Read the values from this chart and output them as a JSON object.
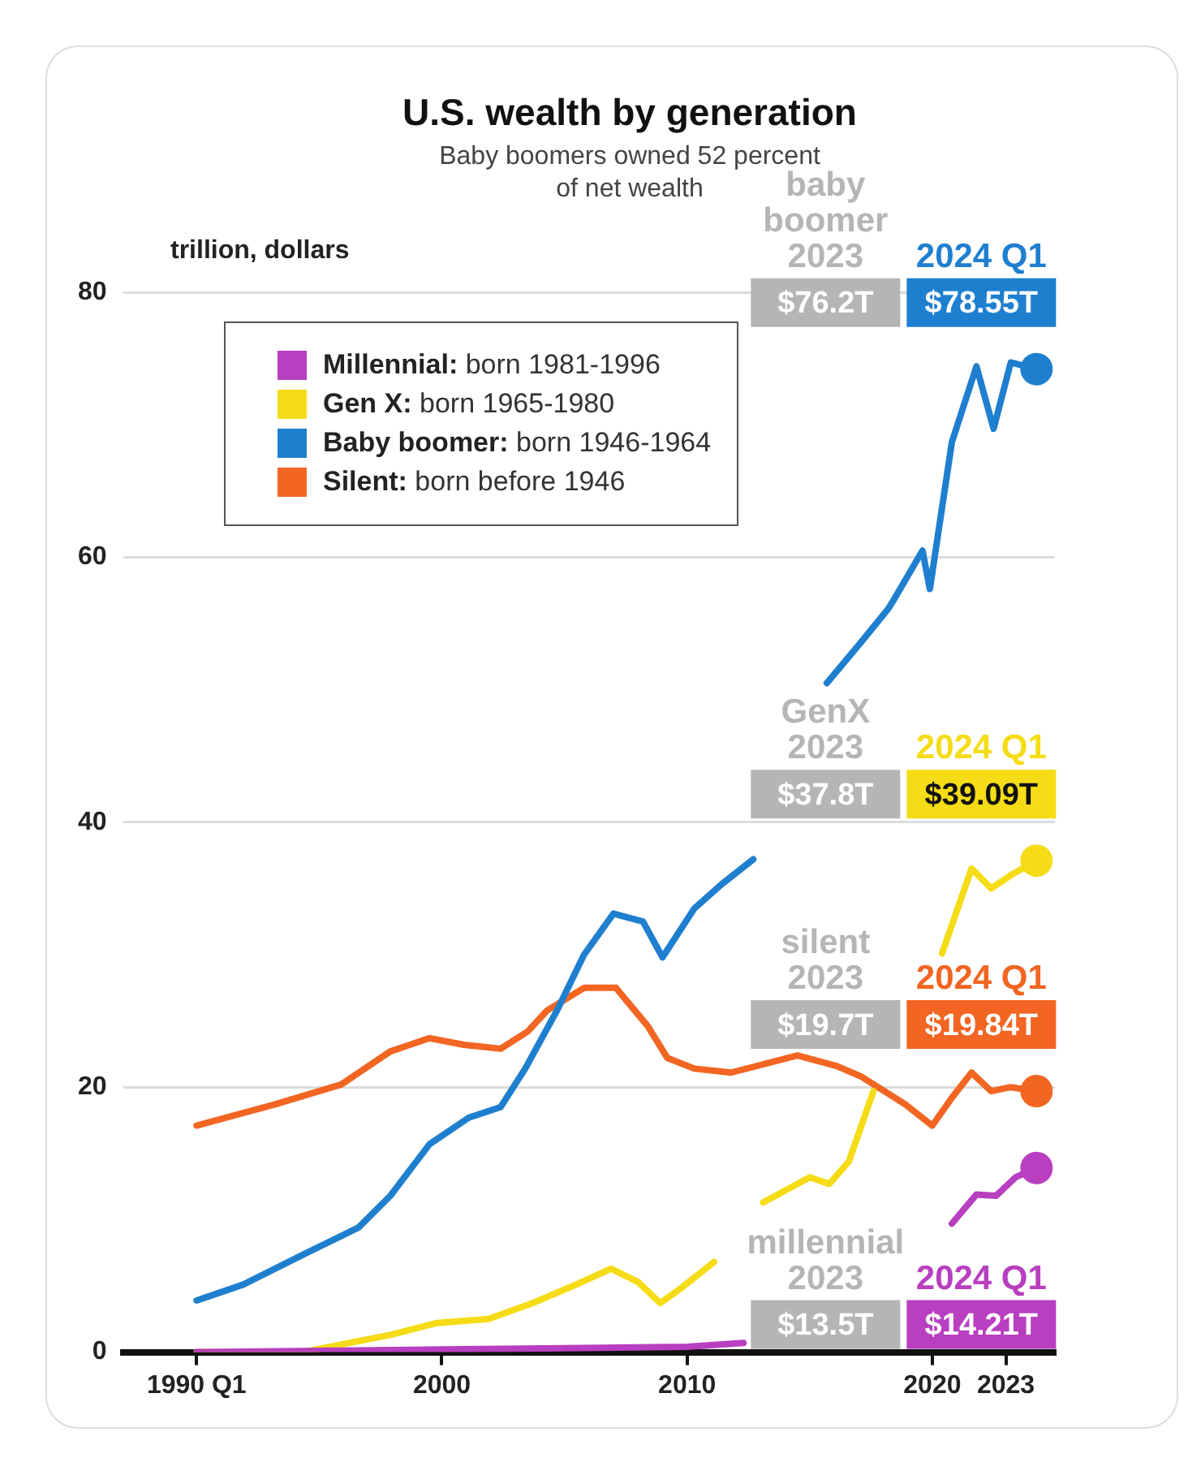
{
  "chart_data": {
    "type": "line",
    "title": "U.S. wealth by generation",
    "subtitle": "Baby boomers owned 52 percent of net wealth",
    "ylabel": "trillion, dollars",
    "xlim": [
      1987,
      2025
    ],
    "xticks": [
      {
        "value": 1990,
        "label": "1990 Q1"
      },
      2000,
      2010,
      2020,
      2023
    ],
    "ylim": [
      0,
      80
    ],
    "yticks": [
      0,
      20,
      40,
      60,
      80
    ],
    "grid": "y",
    "legend": "top left",
    "line_style": "solid",
    "series": [
      {
        "name": "Millennial: born 1981-1996",
        "color": "#b83fc0",
        "x": [
          1990,
          1995,
          2000,
          2005,
          2010,
          2012.3,
          2016,
          2020.8,
          2021.8,
          2022.6,
          2023.4,
          2024.25
        ],
        "values": [
          0,
          0.1,
          0.2,
          0.3,
          0.4,
          0.7,
          null,
          9.7,
          11.9,
          11.8,
          13.2,
          13.9
        ]
      },
      {
        "name": "Gen X: born 1965-1980",
        "color": "#f5dc16",
        "x": [
          1990,
          1994.3,
          1997.9,
          1999.8,
          2001.9,
          2003.7,
          2005.6,
          2006.9,
          2008.0,
          2008.9,
          2009.8,
          2011.1,
          2012.0,
          2013.1,
          2015.0,
          2015.8,
          2016.6,
          2017.6,
          2019.3,
          2020.4,
          2021.6,
          2022.4,
          2023.2,
          2024.25
        ],
        "values": [
          0,
          0,
          1.3,
          2.2,
          2.5,
          3.7,
          5.2,
          6.3,
          5.3,
          3.7,
          4.9,
          6.8,
          null,
          11.3,
          13.2,
          12.7,
          14.4,
          19.7,
          null,
          30.1,
          36.5,
          35.0,
          36.0,
          37.1
        ]
      },
      {
        "name": "Baby boomer: born 1946-1964",
        "color": "#1f7fcf",
        "x": [
          1990,
          1991.9,
          1994.5,
          1996.6,
          1997.9,
          1999.5,
          2001.1,
          2002.4,
          2003.4,
          2004.7,
          2005.8,
          2007.0,
          2008.2,
          2009.0,
          2010.3,
          2011.4,
          2012.7,
          2013.4,
          2014.5,
          2015.7,
          2017.1,
          2018.2,
          2018.5,
          2019.6,
          2019.9,
          2020.8,
          2021.8,
          2022.5,
          2023.2,
          2024.25
        ],
        "values": [
          3.9,
          5.1,
          7.5,
          9.4,
          11.8,
          15.7,
          17.7,
          18.5,
          21.4,
          25.8,
          30.0,
          33.1,
          32.5,
          29.8,
          33.5,
          35.3,
          37.2,
          null,
          null,
          50.5,
          53.6,
          56.1,
          57.0,
          60.5,
          57.6,
          68.7,
          74.4,
          69.7,
          74.7,
          74.2
        ]
      },
      {
        "name": "Silent: born before 1946",
        "color": "#f26522",
        "x": [
          1990,
          1993.2,
          1995.9,
          1997.9,
          1999.5,
          2000.9,
          2002.4,
          2003.5,
          2004.3,
          2005.8,
          2007.1,
          2008.4,
          2009.2,
          2010.3,
          2011.8,
          2014.5,
          2016.1,
          2017.1,
          2018.9,
          2020.0,
          2020.8,
          2021.6,
          2022.4,
          2023.2,
          2024.25
        ],
        "values": [
          17.1,
          18.7,
          20.2,
          22.7,
          23.7,
          23.2,
          22.9,
          24.2,
          25.8,
          27.5,
          27.5,
          24.6,
          22.2,
          21.4,
          21.1,
          22.4,
          21.6,
          20.8,
          18.7,
          17.1,
          19.2,
          21.1,
          19.7,
          20.0,
          19.7
        ]
      }
    ],
    "annotations": [
      "millennial 2023",
      "$13.5T",
      "2024 Q1",
      "$14.21T",
      "GenX 2023",
      "$37.8T",
      "2024 Q1",
      "$39.09T",
      "baby boomer 2023",
      "$76.2T",
      "2024 Q1",
      "$78.55T",
      "silent 2023",
      "$19.7T",
      "2024 Q1",
      "$19.84T"
    ]
  }
}
